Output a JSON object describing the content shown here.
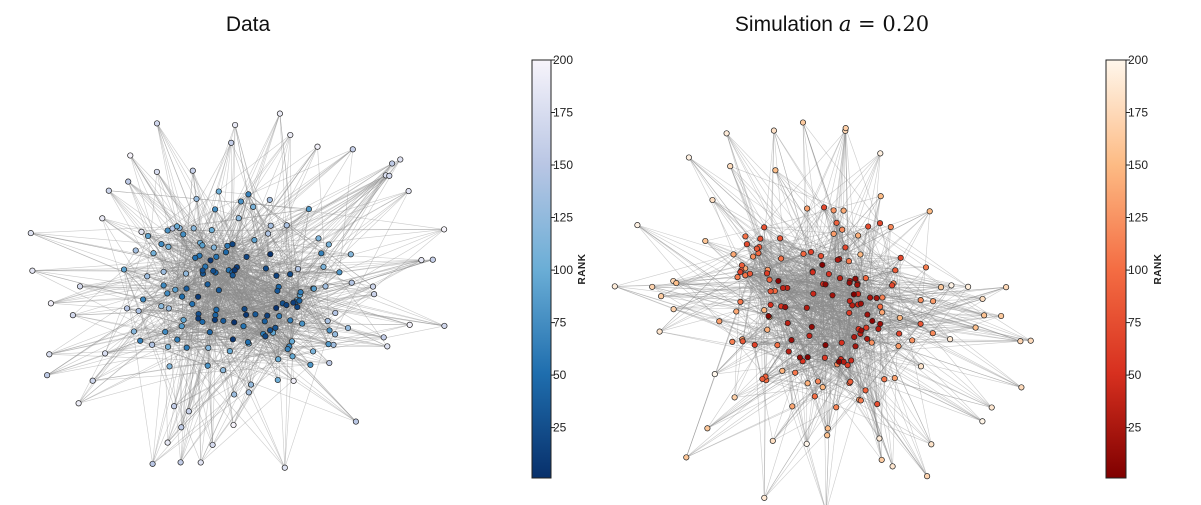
{
  "chart_data": [
    {
      "type": "network",
      "title": "Data",
      "colormap": "blues",
      "colorbar": {
        "label": "RANK",
        "range": [
          1,
          200
        ],
        "ticks": [
          25,
          50,
          75,
          100,
          125,
          150,
          175,
          200
        ],
        "color_low": "#08306b",
        "color_mid": "#4292c6",
        "color_high": "#f7f4fb"
      },
      "node_count": 200,
      "edge_color": "#8c8c8c"
    },
    {
      "type": "network",
      "title": {
        "prefix": "Simulation",
        "symbol": "a",
        "operator": "=",
        "value": "0.20"
      },
      "colormap": "reds",
      "colorbar": {
        "label": "RANK",
        "range": [
          1,
          200
        ],
        "ticks": [
          25,
          50,
          75,
          100,
          125,
          150,
          175,
          200
        ],
        "color_low": "#7f0000",
        "color_mid": "#ef6548",
        "color_high": "#fff7ec"
      },
      "node_count": 200,
      "edge_color": "#8c8c8c"
    }
  ]
}
